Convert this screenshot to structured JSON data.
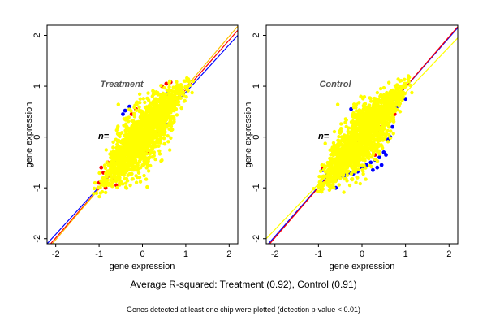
{
  "chart_data": [
    {
      "type": "scatter",
      "title": "Treatment",
      "annotation": "n=",
      "xlabel": "gene expression",
      "ylabel": "gene expression",
      "xlim": [
        -2.2,
        2.2
      ],
      "ylim": [
        -2.1,
        2.2
      ],
      "x_ticks": [
        -2,
        -1,
        0,
        1,
        2
      ],
      "y_ticks": [
        -2,
        -1,
        0,
        1,
        2
      ],
      "x_tick_labels": [
        "-2",
        "-1",
        "0",
        "1",
        "2"
      ],
      "y_tick_labels": [
        "-2",
        "-1",
        "0",
        "1",
        "2"
      ],
      "grid": false,
      "point_groups": [
        {
          "color": "#0000ff",
          "points": [
            [
              -0.45,
              0.45
            ],
            [
              -0.4,
              0.52
            ],
            [
              -0.3,
              0.6
            ],
            [
              0.55,
              0.8
            ],
            [
              0.6,
              0.9
            ],
            [
              0.35,
              0.2
            ],
            [
              0.5,
              0.3
            ],
            [
              0.6,
              0.25
            ],
            [
              -0.6,
              -0.5
            ],
            [
              0.4,
              0.05
            ],
            [
              0.55,
              0.55
            ]
          ]
        },
        {
          "color": "#ff0000",
          "points": [
            [
              -1.0,
              -0.9
            ],
            [
              -0.95,
              -0.6
            ],
            [
              -0.9,
              -0.7
            ],
            [
              -0.85,
              -1.0
            ],
            [
              -0.7,
              -0.85
            ],
            [
              -0.6,
              -0.95
            ],
            [
              -0.55,
              -0.4
            ],
            [
              -0.35,
              -0.55
            ],
            [
              -0.25,
              0.45
            ],
            [
              -0.15,
              0.55
            ],
            [
              0.45,
              1.0
            ],
            [
              0.55,
              1.05
            ],
            [
              0.65,
              1.08
            ],
            [
              0.7,
              0.7
            ],
            [
              0.8,
              1.0
            ],
            [
              0.2,
              -0.05
            ],
            [
              0.35,
              0.1
            ],
            [
              0.1,
              -0.3
            ],
            [
              0.5,
              0.6
            ],
            [
              -1.02,
              -1.0
            ],
            [
              -0.8,
              -0.5
            ]
          ]
        }
      ],
      "background_cloud": {
        "color": "#ffff00",
        "description_points": [
          [
            -1.05,
            -1.05
          ],
          [
            -0.8,
            -0.7
          ],
          [
            -0.5,
            -0.35
          ],
          [
            -0.2,
            -0.05
          ],
          [
            0.0,
            0.1
          ],
          [
            0.3,
            0.35
          ],
          [
            0.6,
            0.7
          ],
          [
            0.9,
            0.95
          ],
          [
            1.1,
            1.15
          ]
        ]
      },
      "reference_lines": [
        {
          "color": "#0000ff",
          "from": [
            -2.2,
            -2.1
          ],
          "to": [
            2.2,
            2.0
          ]
        },
        {
          "color": "#ff0000",
          "from": [
            -2.2,
            -2.18
          ],
          "to": [
            2.2,
            2.1
          ]
        },
        {
          "color": "#ffc000",
          "from": [
            -2.2,
            -2.22
          ],
          "to": [
            2.2,
            2.18
          ]
        }
      ]
    },
    {
      "type": "scatter",
      "title": "Control",
      "annotation": "n=",
      "xlabel": "gene expression",
      "ylabel": "gene expression",
      "xlim": [
        -2.2,
        2.2
      ],
      "ylim": [
        -2.1,
        2.2
      ],
      "x_ticks": [
        -2,
        -1,
        0,
        1,
        2
      ],
      "y_ticks": [
        -2,
        -1,
        0,
        1,
        2
      ],
      "x_tick_labels": [
        "-2",
        "-1",
        "0",
        "1",
        "2"
      ],
      "y_tick_labels": [
        "-2",
        "-1",
        "0",
        "1",
        "2"
      ],
      "grid": false,
      "point_groups": [
        {
          "color": "#0000ff",
          "points": [
            [
              -0.9,
              -0.65
            ],
            [
              -0.8,
              -0.75
            ],
            [
              -0.7,
              -0.8
            ],
            [
              -0.6,
              -0.85
            ],
            [
              -0.5,
              -0.8
            ],
            [
              -0.4,
              -0.75
            ],
            [
              -0.3,
              -0.7
            ],
            [
              -0.2,
              -0.72
            ],
            [
              -0.1,
              -0.68
            ],
            [
              0.0,
              -0.6
            ],
            [
              0.1,
              -0.55
            ],
            [
              0.2,
              -0.5
            ],
            [
              0.3,
              -0.45
            ],
            [
              0.35,
              -0.6
            ],
            [
              0.4,
              -0.4
            ],
            [
              0.45,
              -0.55
            ],
            [
              0.5,
              -0.3
            ],
            [
              0.55,
              -0.35
            ],
            [
              0.6,
              -0.05
            ],
            [
              0.65,
              0.0
            ],
            [
              0.7,
              0.2
            ],
            [
              0.8,
              0.6
            ],
            [
              0.85,
              0.75
            ],
            [
              0.9,
              0.85
            ],
            [
              1.0,
              0.75
            ],
            [
              -0.95,
              -1.0
            ],
            [
              -0.6,
              -1.0
            ],
            [
              -0.25,
              0.55
            ],
            [
              0.25,
              -0.65
            ]
          ]
        },
        {
          "color": "#ff0000",
          "points": [
            [
              0.1,
              -0.3
            ],
            [
              0.3,
              -0.35
            ],
            [
              0.35,
              0.1
            ],
            [
              0.45,
              0.2
            ],
            [
              0.6,
              0.5
            ],
            [
              0.7,
              0.7
            ],
            [
              0.75,
              0.45
            ],
            [
              -0.95,
              -0.95
            ],
            [
              -0.9,
              -0.6
            ]
          ]
        }
      ],
      "background_cloud": {
        "color": "#ffff00",
        "description_points": [
          [
            -1.05,
            -1.05
          ],
          [
            -0.8,
            -0.7
          ],
          [
            -0.5,
            -0.35
          ],
          [
            -0.2,
            -0.05
          ],
          [
            0.0,
            0.1
          ],
          [
            0.3,
            0.35
          ],
          [
            0.6,
            0.7
          ],
          [
            0.9,
            0.95
          ],
          [
            1.1,
            1.15
          ]
        ]
      },
      "reference_lines": [
        {
          "color": "#0000ff",
          "from": [
            -2.2,
            -2.15
          ],
          "to": [
            2.2,
            2.15
          ]
        },
        {
          "color": "#ff0000",
          "from": [
            -2.2,
            -2.18
          ],
          "to": [
            2.2,
            2.17
          ]
        },
        {
          "color": "#ffff00",
          "from": [
            -2.2,
            -2.0
          ],
          "to": [
            2.2,
            1.95
          ]
        }
      ]
    }
  ],
  "caption": {
    "main": "Average R-squared: Treatment (0.92), Control (0.91)",
    "sub": "Genes detected at least one chip were plotted (detection p-value < 0.01)"
  }
}
